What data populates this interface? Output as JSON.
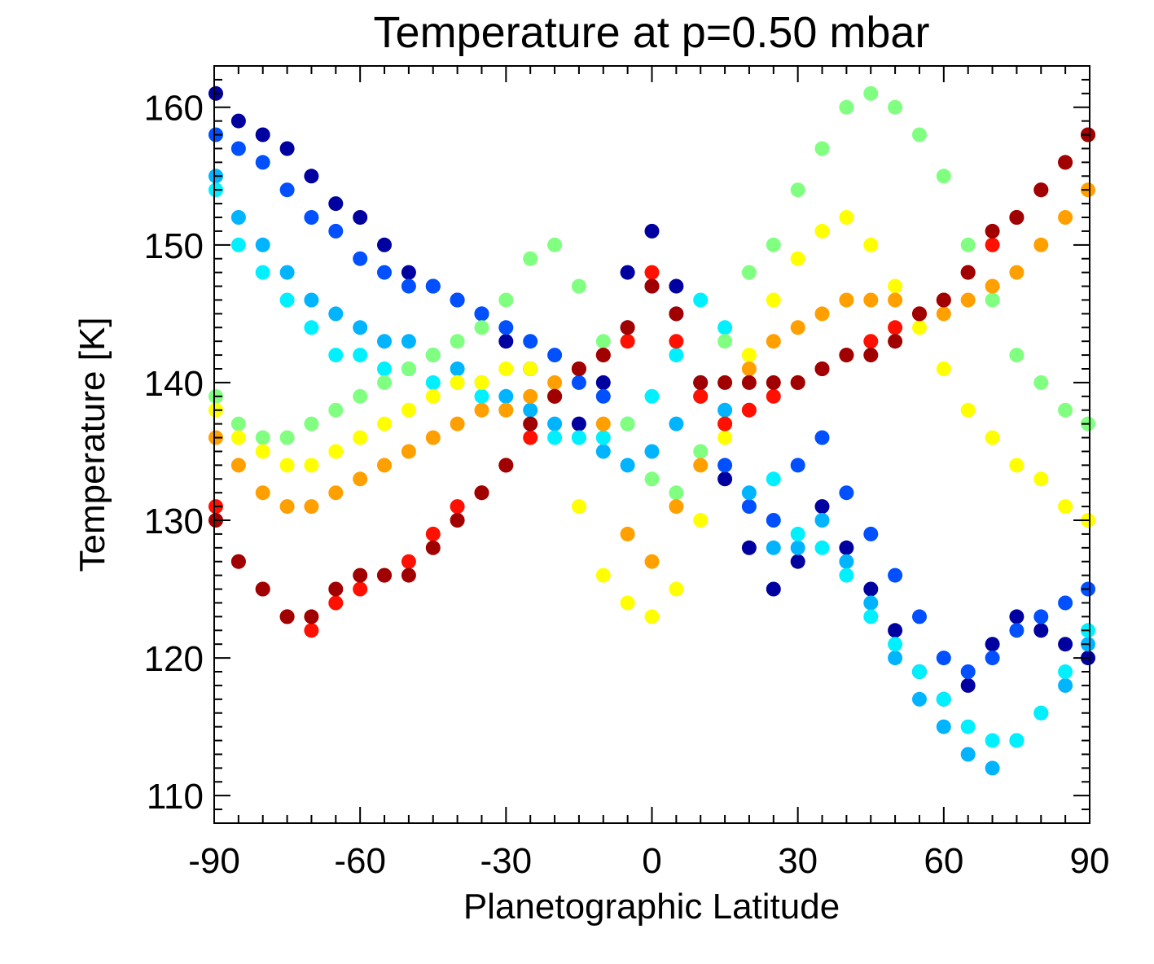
{
  "chart_data": {
    "type": "scatter",
    "title": "Temperature at p=0.50 mbar",
    "xlabel": "Planetographic Latitude",
    "ylabel": "Temperature [K]",
    "xlim": [
      -90,
      90
    ],
    "ylim": [
      108,
      163
    ],
    "x_ticks": [
      -90,
      -60,
      -30,
      0,
      30,
      60,
      90
    ],
    "x_tick_labels": [
      "-90",
      "-60",
      "-30",
      "0",
      "30",
      "60",
      "90"
    ],
    "y_ticks": [
      110,
      120,
      130,
      140,
      150,
      160
    ],
    "y_tick_labels": [
      "110",
      "120",
      "130",
      "140",
      "150",
      "160"
    ],
    "grid": false,
    "legend": "none",
    "colormap": "jet",
    "colors": {
      "darkblue": "#0000a0",
      "blue": "#0050ff",
      "skyblue": "#00b4ff",
      "cyan": "#00f0ff",
      "green": "#80ff80",
      "yellow": "#ffff00",
      "orange": "#ffa000",
      "red": "#ff1000",
      "darkred": "#a00000"
    },
    "series": [
      {
        "color": "darkblue",
        "x": [
          -90,
          -85,
          -80,
          -75,
          -70,
          -65,
          -60,
          -55,
          -50,
          -45,
          -40,
          -35,
          -30,
          -25,
          -20,
          -15,
          -10,
          -5,
          0,
          5,
          10,
          15,
          20,
          25,
          30,
          35,
          40,
          45,
          50,
          55,
          60,
          65,
          70,
          75,
          80,
          85,
          90
        ],
        "y": [
          161,
          159,
          158,
          157,
          155,
          153,
          152,
          150,
          148,
          147,
          146,
          145,
          143,
          141,
          139,
          137,
          140,
          148,
          151,
          147,
          140,
          133,
          128,
          125,
          127,
          131,
          128,
          125,
          122,
          119,
          117,
          118,
          121,
          123,
          122,
          121,
          120
        ]
      },
      {
        "color": "blue",
        "x": [
          -90,
          -85,
          -80,
          -75,
          -70,
          -65,
          -60,
          -55,
          -50,
          -45,
          -40,
          -35,
          -30,
          -25,
          -20,
          -15,
          -10,
          -5,
          0,
          5,
          10,
          15,
          20,
          25,
          30,
          35,
          40,
          45,
          50,
          55,
          60,
          65,
          70,
          75,
          80,
          85,
          90
        ],
        "y": [
          158,
          157,
          156,
          154,
          152,
          151,
          149,
          148,
          147,
          147,
          146,
          145,
          144,
          143,
          142,
          140,
          139,
          144,
          147,
          145,
          139,
          134,
          131,
          130,
          134,
          136,
          132,
          129,
          126,
          123,
          120,
          119,
          120,
          122,
          123,
          124,
          125
        ]
      },
      {
        "color": "skyblue",
        "x": [
          -90,
          -85,
          -80,
          -75,
          -70,
          -65,
          -60,
          -55,
          -50,
          -45,
          -40,
          -35,
          -30,
          -25,
          -20,
          -15,
          -10,
          -5,
          0,
          5,
          10,
          15,
          20,
          25,
          30,
          35,
          40,
          45,
          50,
          55,
          60,
          65,
          70,
          75,
          80,
          85,
          90
        ],
        "y": [
          155,
          152,
          150,
          148,
          146,
          145,
          144,
          143,
          143,
          142,
          141,
          140,
          139,
          138,
          137,
          136,
          135,
          134,
          135,
          137,
          140,
          138,
          132,
          128,
          128,
          130,
          127,
          124,
          120,
          117,
          115,
          113,
          112,
          114,
          116,
          118,
          121
        ]
      },
      {
        "color": "cyan",
        "x": [
          -90,
          -85,
          -80,
          -75,
          -70,
          -65,
          -60,
          -55,
          -50,
          -45,
          -40,
          -35,
          -30,
          -25,
          -20,
          -15,
          -10,
          -5,
          0,
          5,
          10,
          15,
          20,
          25,
          30,
          35,
          40,
          45,
          50,
          55,
          60,
          65,
          70,
          75,
          80,
          85,
          90
        ],
        "y": [
          154,
          150,
          148,
          146,
          144,
          142,
          142,
          141,
          141,
          140,
          140,
          139,
          138,
          137,
          136,
          136,
          136,
          137,
          139,
          142,
          146,
          144,
          138,
          133,
          129,
          128,
          126,
          123,
          121,
          119,
          117,
          115,
          114,
          114,
          116,
          119,
          122
        ]
      },
      {
        "color": "green",
        "x": [
          -90,
          -85,
          -80,
          -75,
          -70,
          -65,
          -60,
          -55,
          -50,
          -45,
          -40,
          -35,
          -30,
          -25,
          -20,
          -15,
          -10,
          -5,
          0,
          5,
          10,
          15,
          20,
          25,
          30,
          35,
          40,
          45,
          50,
          55,
          60,
          65,
          70,
          75,
          80,
          85,
          90
        ],
        "y": [
          139,
          137,
          136,
          136,
          137,
          138,
          139,
          140,
          141,
          142,
          143,
          144,
          146,
          149,
          150,
          147,
          143,
          137,
          133,
          132,
          135,
          143,
          148,
          150,
          154,
          157,
          160,
          161,
          160,
          158,
          155,
          150,
          146,
          142,
          140,
          138,
          137
        ]
      },
      {
        "color": "yellow",
        "x": [
          -90,
          -85,
          -80,
          -75,
          -70,
          -65,
          -60,
          -55,
          -50,
          -45,
          -40,
          -35,
          -30,
          -25,
          -20,
          -15,
          -10,
          -5,
          0,
          5,
          10,
          15,
          20,
          25,
          30,
          35,
          40,
          45,
          50,
          55,
          60,
          65,
          70,
          75,
          80,
          85,
          90
        ],
        "y": [
          138,
          136,
          135,
          134,
          134,
          135,
          136,
          137,
          138,
          139,
          140,
          140,
          141,
          141,
          139,
          131,
          126,
          124,
          123,
          125,
          130,
          136,
          142,
          146,
          149,
          151,
          152,
          150,
          147,
          144,
          141,
          138,
          136,
          134,
          133,
          131,
          130
        ]
      },
      {
        "color": "orange",
        "x": [
          -90,
          -85,
          -80,
          -75,
          -70,
          -65,
          -60,
          -55,
          -50,
          -45,
          -40,
          -35,
          -30,
          -25,
          -20,
          -15,
          -10,
          -5,
          0,
          5,
          10,
          15,
          20,
          25,
          30,
          35,
          40,
          45,
          50,
          55,
          60,
          65,
          70,
          75,
          80,
          85,
          90
        ],
        "y": [
          136,
          134,
          132,
          131,
          131,
          132,
          133,
          134,
          135,
          136,
          137,
          138,
          138,
          139,
          140,
          141,
          137,
          129,
          127,
          131,
          134,
          137,
          141,
          143,
          144,
          145,
          146,
          146,
          146,
          145,
          145,
          146,
          147,
          148,
          150,
          152,
          154
        ]
      },
      {
        "color": "red",
        "x": [
          -90,
          -85,
          -80,
          -75,
          -70,
          -65,
          -60,
          -55,
          -50,
          -45,
          -40,
          -35,
          -30,
          -25,
          -20,
          -15,
          -10,
          -5,
          0,
          5,
          10,
          15,
          20,
          25,
          30,
          35,
          40,
          45,
          50,
          55,
          60,
          65,
          70,
          75,
          80,
          85,
          90
        ],
        "y": [
          131,
          127,
          125,
          123,
          122,
          124,
          125,
          126,
          127,
          129,
          131,
          132,
          134,
          136,
          139,
          141,
          142,
          143,
          148,
          143,
          139,
          137,
          138,
          139,
          140,
          141,
          142,
          143,
          144,
          145,
          146,
          148,
          150,
          152,
          154,
          156,
          158
        ]
      },
      {
        "color": "darkred",
        "x": [
          -90,
          -85,
          -80,
          -75,
          -70,
          -65,
          -60,
          -55,
          -50,
          -45,
          -40,
          -35,
          -30,
          -25,
          -20,
          -15,
          -10,
          -5,
          0,
          5,
          10,
          15,
          20,
          25,
          30,
          35,
          40,
          45,
          50,
          55,
          60,
          65,
          70,
          75,
          80,
          85,
          90
        ],
        "y": [
          130,
          127,
          125,
          123,
          123,
          125,
          126,
          126,
          126,
          128,
          130,
          132,
          134,
          137,
          139,
          141,
          142,
          144,
          147,
          145,
          140,
          140,
          140,
          140,
          140,
          141,
          142,
          142,
          143,
          145,
          146,
          148,
          151,
          152,
          154,
          156,
          158
        ]
      }
    ]
  }
}
